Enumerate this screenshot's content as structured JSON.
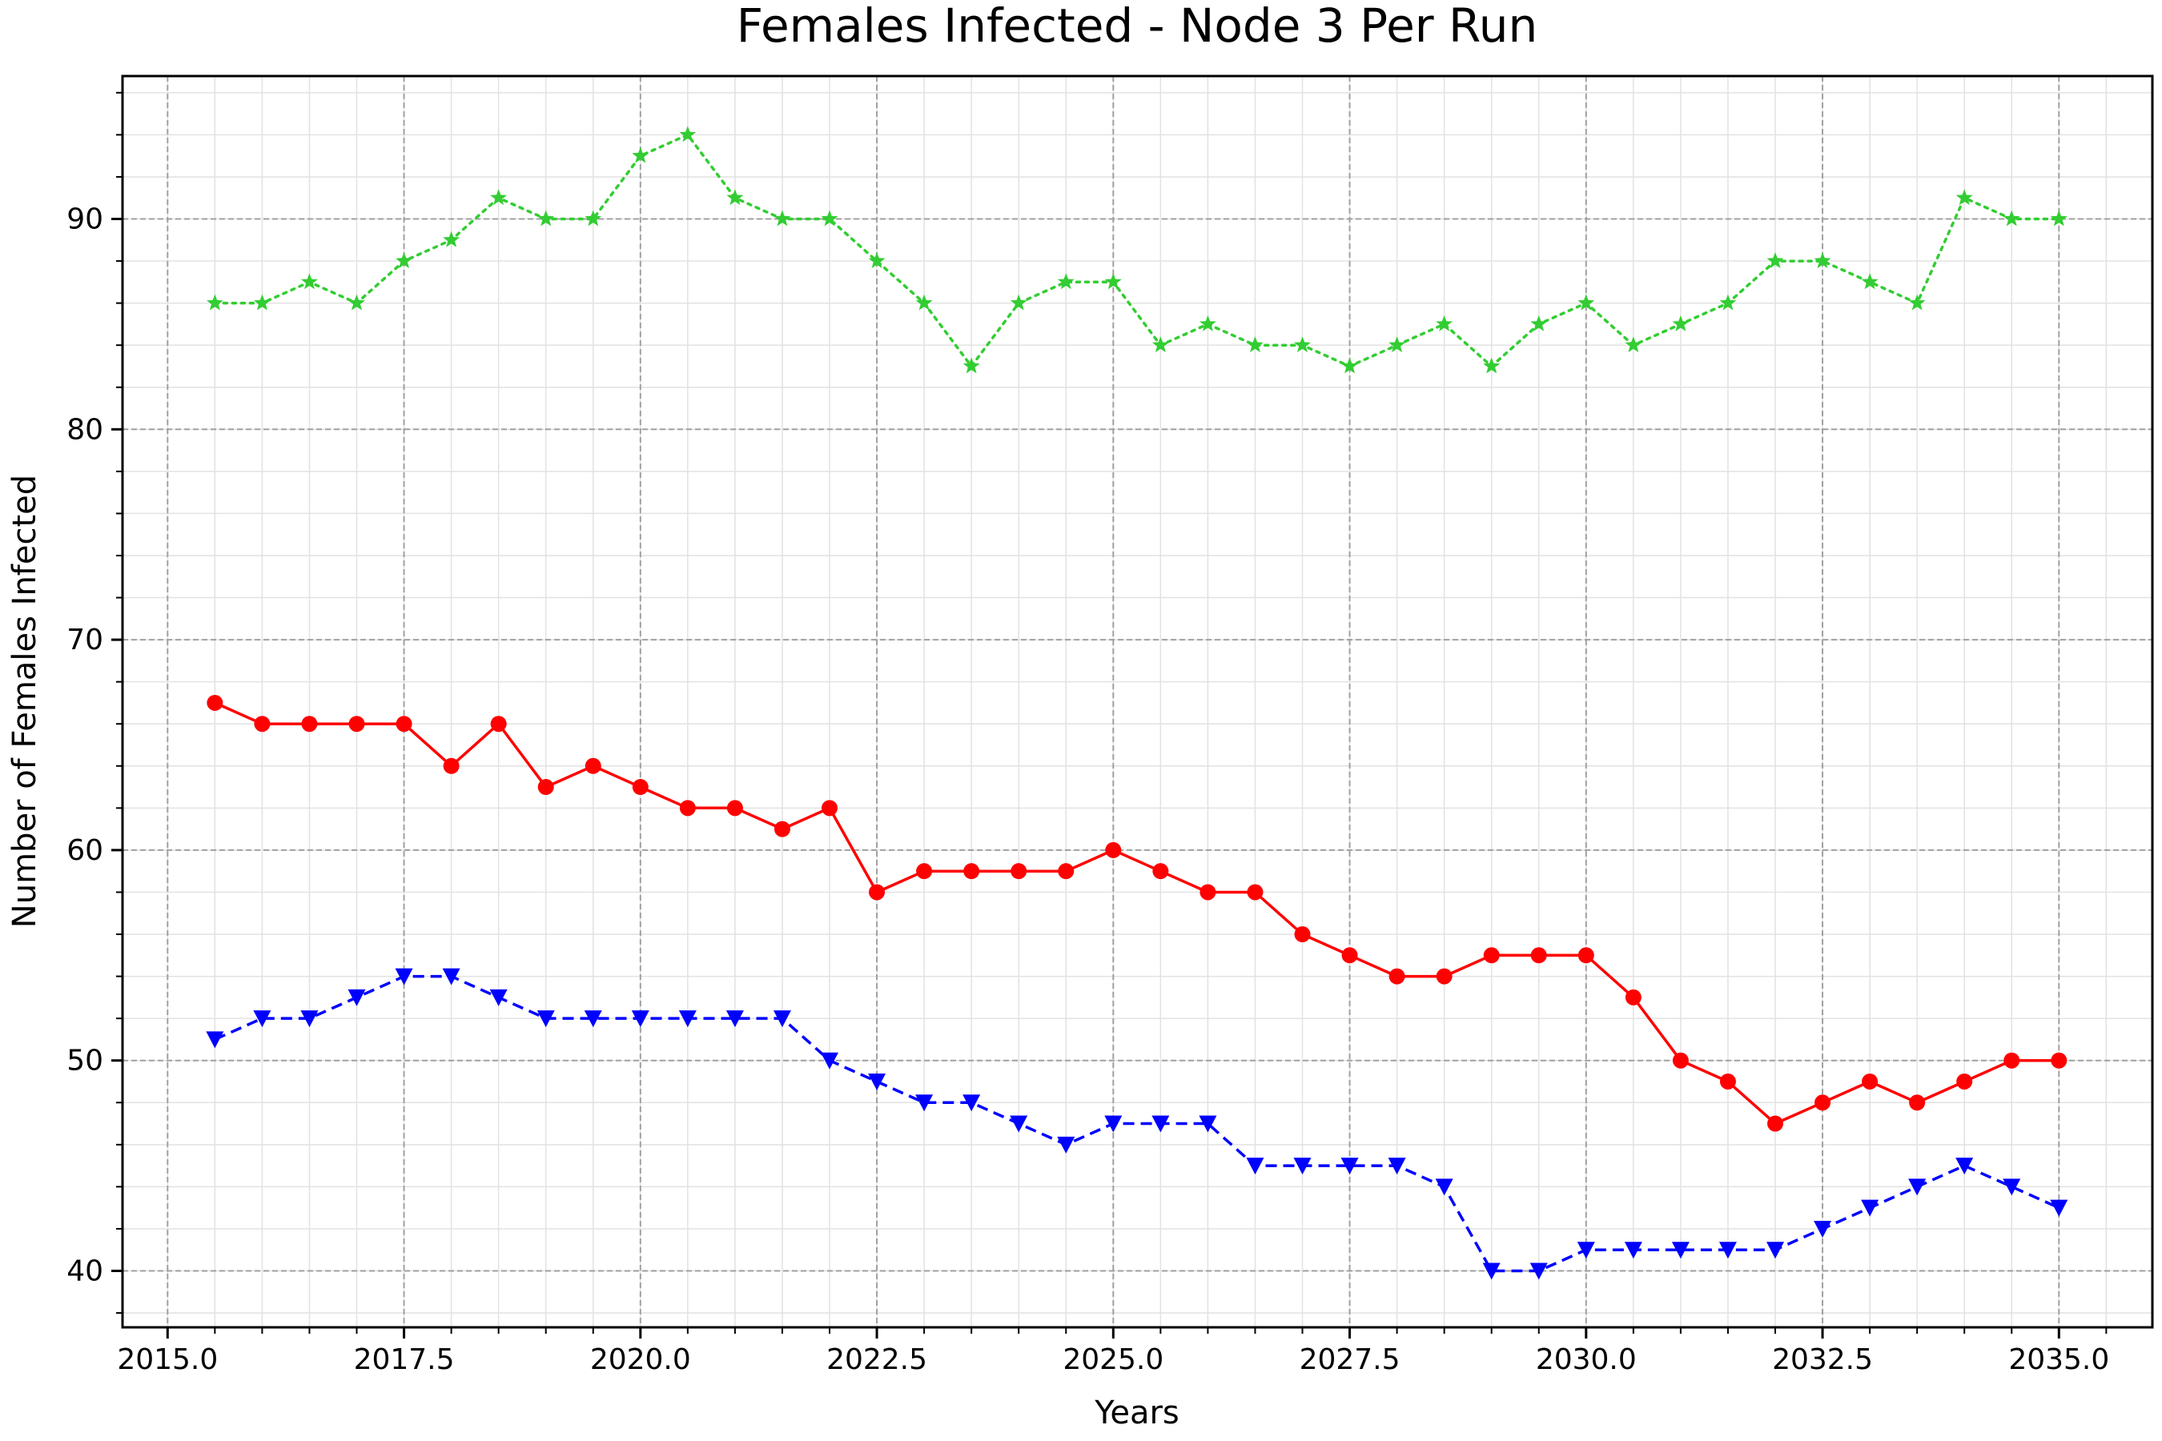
{
  "chart_data": {
    "type": "line",
    "title": "Females Infected - Node 3 Per Run",
    "xlabel": "Years",
    "ylabel": "Number of Females Infected",
    "xlim": [
      2015.0,
      2035.0
    ],
    "ylim": [
      40,
      90
    ],
    "xticks": [
      2015.0,
      2017.5,
      2020.0,
      2022.5,
      2025.0,
      2027.5,
      2030.0,
      2032.5,
      2035.0
    ],
    "xtick_labels": [
      "2015.0",
      "2017.5",
      "2020.0",
      "2022.5",
      "2025.0",
      "2027.5",
      "2030.0",
      "2032.5",
      "2035.0"
    ],
    "yticks": [
      40,
      50,
      60,
      70,
      80,
      90
    ],
    "ytick_labels": [
      "40",
      "50",
      "60",
      "70",
      "80",
      "90"
    ],
    "grid": true,
    "x": [
      2015.5,
      2016.0,
      2016.5,
      2017.0,
      2017.5,
      2018.0,
      2018.5,
      2019.0,
      2019.5,
      2020.0,
      2020.5,
      2021.0,
      2021.5,
      2022.0,
      2022.5,
      2023.0,
      2023.5,
      2024.0,
      2024.5,
      2025.0,
      2025.5,
      2026.0,
      2026.5,
      2027.0,
      2027.5,
      2028.0,
      2028.5,
      2029.0,
      2029.5,
      2030.0,
      2030.5,
      2031.0,
      2031.5,
      2032.0,
      2032.5,
      2033.0,
      2033.5,
      2034.0,
      2034.5,
      2035.0
    ],
    "series": [
      {
        "color": "#ff0000",
        "marker": "circle",
        "linestyle": "solid",
        "values": [
          67,
          66,
          66,
          66,
          66,
          64,
          66,
          63,
          64,
          63,
          62,
          62,
          61,
          62,
          58,
          59,
          59,
          59,
          59,
          60,
          59,
          58,
          58,
          56,
          55,
          54,
          54,
          55,
          55,
          55,
          53,
          50,
          49,
          47,
          48,
          49,
          48,
          49,
          50,
          50
        ]
      },
      {
        "color": "#0000ff",
        "marker": "triangle-down",
        "linestyle": "dashed",
        "values": [
          51,
          52,
          52,
          53,
          54,
          54,
          53,
          52,
          52,
          52,
          52,
          52,
          52,
          50,
          49,
          48,
          48,
          47,
          46,
          47,
          47,
          47,
          45,
          45,
          45,
          45,
          44,
          40,
          40,
          41,
          41,
          41,
          41,
          41,
          42,
          43,
          44,
          45,
          44,
          43
        ]
      },
      {
        "color": "#32cd32",
        "marker": "star",
        "linestyle": "dotted",
        "values": [
          86,
          86,
          87,
          86,
          88,
          89,
          91,
          90,
          90,
          93,
          94,
          91,
          90,
          90,
          88,
          86,
          83,
          86,
          87,
          87,
          84,
          85,
          84,
          84,
          83,
          84,
          85,
          83,
          85,
          86,
          84,
          85,
          86,
          88,
          88,
          87,
          86,
          91,
          90,
          90
        ]
      }
    ]
  }
}
